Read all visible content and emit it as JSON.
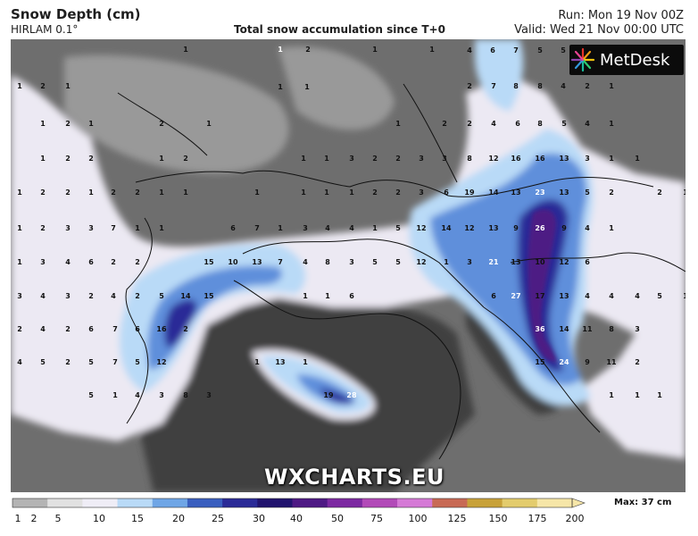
{
  "header": {
    "title": "Snow Depth (cm)",
    "model": "HIRLAM 0.1°",
    "subtitle": "Total snow accumulation since T+0",
    "run": "Run: Mon 19 Nov 00Z",
    "valid": "Valid: Wed 21 Nov 00:00 UTC"
  },
  "logo": {
    "text": "MetDesk",
    "icon": "starburst-logo-icon"
  },
  "watermark": "WXCHARTS.EU",
  "scale": {
    "ticks": [
      "1",
      "2",
      "5",
      "10",
      "15",
      "20",
      "25",
      "30",
      "40",
      "50",
      "75",
      "100",
      "125",
      "150",
      "175",
      "200"
    ],
    "colors": [
      "#b4b4b4",
      "#e1e1e1",
      "#efedf6",
      "#b9daf7",
      "#6fa6e6",
      "#3a5fbf",
      "#2b2b97",
      "#22146e",
      "#4e1a84",
      "#7d2aa2",
      "#b24ab8",
      "#d57ad6",
      "#c86a55",
      "#c8a23a",
      "#e3cc6d",
      "#f6e6a8"
    ],
    "max_label": "Max: 37 cm"
  },
  "map": {
    "land_color": "#6e6e6e",
    "sea_color": "#404040",
    "labels": [
      {
        "v": "1",
        "c": 1
      },
      {
        "v": "1",
        "c": 2
      },
      {
        "v": "2",
        "c": 1
      },
      {
        "v": "1",
        "c": 1
      },
      {
        "v": "1",
        "c": 1
      },
      {
        "v": "4",
        "c": 1
      },
      {
        "v": "6",
        "c": 1
      },
      {
        "v": "7",
        "c": 1
      },
      {
        "v": "5",
        "c": 1
      },
      {
        "v": "5",
        "c": 1
      },
      {
        "v": "3",
        "c": 1
      },
      {
        "v": "1",
        "c": 1
      },
      {
        "v": "2",
        "c": 1
      },
      {
        "v": "1",
        "c": 1
      },
      {
        "v": "1",
        "c": 1
      },
      {
        "v": "1",
        "c": 1
      },
      {
        "v": "2",
        "c": 1
      },
      {
        "v": "7",
        "c": 1
      },
      {
        "v": "8",
        "c": 1
      },
      {
        "v": "8",
        "c": 1
      },
      {
        "v": "4",
        "c": 1
      },
      {
        "v": "2",
        "c": 1
      },
      {
        "v": "1",
        "c": 1
      },
      {
        "v": "1",
        "c": 1
      },
      {
        "v": "2",
        "c": 1
      },
      {
        "v": "1",
        "c": 1
      },
      {
        "v": "2",
        "c": 1
      },
      {
        "v": "1",
        "c": 1
      },
      {
        "v": "1",
        "c": 1
      },
      {
        "v": "2",
        "c": 1
      },
      {
        "v": "2",
        "c": 1
      },
      {
        "v": "4",
        "c": 1
      },
      {
        "v": "6",
        "c": 1
      },
      {
        "v": "8",
        "c": 1
      },
      {
        "v": "5",
        "c": 1
      },
      {
        "v": "4",
        "c": 1
      },
      {
        "v": "1",
        "c": 1
      },
      {
        "v": "1",
        "c": 1
      },
      {
        "v": "2",
        "c": 1
      },
      {
        "v": "2",
        "c": 1
      },
      {
        "v": "1",
        "c": 1
      },
      {
        "v": "2",
        "c": 1
      },
      {
        "v": "1",
        "c": 1
      },
      {
        "v": "1",
        "c": 1
      },
      {
        "v": "3",
        "c": 1
      },
      {
        "v": "2",
        "c": 1
      },
      {
        "v": "2",
        "c": 1
      },
      {
        "v": "3",
        "c": 1
      },
      {
        "v": "3",
        "c": 1
      },
      {
        "v": "8",
        "c": 1
      },
      {
        "v": "12",
        "c": 1
      },
      {
        "v": "16",
        "c": 1
      },
      {
        "v": "16",
        "c": 1
      },
      {
        "v": "13",
        "c": 1
      },
      {
        "v": "3",
        "c": 1
      },
      {
        "v": "1",
        "c": 1
      },
      {
        "v": "1",
        "c": 1
      },
      {
        "v": "1",
        "c": 1
      },
      {
        "v": "2",
        "c": 1
      },
      {
        "v": "2",
        "c": 1
      },
      {
        "v": "1",
        "c": 1
      },
      {
        "v": "2",
        "c": 1
      },
      {
        "v": "2",
        "c": 1
      },
      {
        "v": "1",
        "c": 1
      },
      {
        "v": "1",
        "c": 1
      },
      {
        "v": "1",
        "c": 1
      },
      {
        "v": "1",
        "c": 1
      },
      {
        "v": "1",
        "c": 1
      },
      {
        "v": "1",
        "c": 1
      },
      {
        "v": "2",
        "c": 1
      },
      {
        "v": "2",
        "c": 1
      },
      {
        "v": "3",
        "c": 1
      },
      {
        "v": "6",
        "c": 1
      },
      {
        "v": "19",
        "c": 1
      },
      {
        "v": "14",
        "c": 1
      },
      {
        "v": "13",
        "c": 1
      },
      {
        "v": "23",
        "c": 2
      },
      {
        "v": "13",
        "c": 1
      },
      {
        "v": "5",
        "c": 1
      },
      {
        "v": "2",
        "c": 1
      },
      {
        "v": "2",
        "c": 1
      },
      {
        "v": "1",
        "c": 1
      },
      {
        "v": "1",
        "c": 1
      },
      {
        "v": "2",
        "c": 1
      },
      {
        "v": "3",
        "c": 1
      },
      {
        "v": "3",
        "c": 1
      },
      {
        "v": "7",
        "c": 1
      },
      {
        "v": "1",
        "c": 1
      },
      {
        "v": "1",
        "c": 1
      },
      {
        "v": "6",
        "c": 1
      },
      {
        "v": "7",
        "c": 1
      },
      {
        "v": "1",
        "c": 1
      },
      {
        "v": "3",
        "c": 1
      },
      {
        "v": "4",
        "c": 1
      },
      {
        "v": "4",
        "c": 1
      },
      {
        "v": "1",
        "c": 1
      },
      {
        "v": "5",
        "c": 1
      },
      {
        "v": "12",
        "c": 1
      },
      {
        "v": "14",
        "c": 1
      },
      {
        "v": "12",
        "c": 1
      },
      {
        "v": "13",
        "c": 1
      },
      {
        "v": "9",
        "c": 1
      },
      {
        "v": "26",
        "c": 2
      },
      {
        "v": "9",
        "c": 1
      },
      {
        "v": "4",
        "c": 1
      },
      {
        "v": "1",
        "c": 1
      },
      {
        "v": "1",
        "c": 1
      },
      {
        "v": "3",
        "c": 1
      },
      {
        "v": "4",
        "c": 1
      },
      {
        "v": "6",
        "c": 1
      },
      {
        "v": "2",
        "c": 1
      },
      {
        "v": "2",
        "c": 1
      },
      {
        "v": "15",
        "c": 1
      },
      {
        "v": "10",
        "c": 1
      },
      {
        "v": "13",
        "c": 1
      },
      {
        "v": "7",
        "c": 1
      },
      {
        "v": "4",
        "c": 1
      },
      {
        "v": "8",
        "c": 1
      },
      {
        "v": "3",
        "c": 1
      },
      {
        "v": "5",
        "c": 1
      },
      {
        "v": "5",
        "c": 1
      },
      {
        "v": "12",
        "c": 1
      },
      {
        "v": "1",
        "c": 1
      },
      {
        "v": "3",
        "c": 1
      },
      {
        "v": "21",
        "c": 2
      },
      {
        "v": "13",
        "c": 1
      },
      {
        "v": "10",
        "c": 1
      },
      {
        "v": "12",
        "c": 1
      },
      {
        "v": "6",
        "c": 1
      },
      {
        "v": "3",
        "c": 1
      },
      {
        "v": "4",
        "c": 1
      },
      {
        "v": "3",
        "c": 1
      },
      {
        "v": "2",
        "c": 1
      },
      {
        "v": "4",
        "c": 1
      },
      {
        "v": "2",
        "c": 1
      },
      {
        "v": "5",
        "c": 1
      },
      {
        "v": "14",
        "c": 1
      },
      {
        "v": "15",
        "c": 1
      },
      {
        "v": "1",
        "c": 1
      },
      {
        "v": "1",
        "c": 1
      },
      {
        "v": "6",
        "c": 1
      },
      {
        "v": "6",
        "c": 1
      },
      {
        "v": "27",
        "c": 2
      },
      {
        "v": "17",
        "c": 1
      },
      {
        "v": "13",
        "c": 1
      },
      {
        "v": "4",
        "c": 1
      },
      {
        "v": "4",
        "c": 1
      },
      {
        "v": "4",
        "c": 1
      },
      {
        "v": "5",
        "c": 1
      },
      {
        "v": "1",
        "c": 1
      },
      {
        "v": "2",
        "c": 1
      },
      {
        "v": "4",
        "c": 1
      },
      {
        "v": "2",
        "c": 1
      },
      {
        "v": "6",
        "c": 1
      },
      {
        "v": "7",
        "c": 1
      },
      {
        "v": "6",
        "c": 1
      },
      {
        "v": "16",
        "c": 1
      },
      {
        "v": "2",
        "c": 1
      },
      {
        "v": "36",
        "c": 2
      },
      {
        "v": "14",
        "c": 1
      },
      {
        "v": "11",
        "c": 1
      },
      {
        "v": "8",
        "c": 1
      },
      {
        "v": "3",
        "c": 1
      },
      {
        "v": "4",
        "c": 1
      },
      {
        "v": "5",
        "c": 1
      },
      {
        "v": "2",
        "c": 1
      },
      {
        "v": "5",
        "c": 1
      },
      {
        "v": "7",
        "c": 1
      },
      {
        "v": "5",
        "c": 1
      },
      {
        "v": "12",
        "c": 1
      },
      {
        "v": "1",
        "c": 1
      },
      {
        "v": "13",
        "c": 1
      },
      {
        "v": "1",
        "c": 1
      },
      {
        "v": "15",
        "c": 1
      },
      {
        "v": "24",
        "c": 2
      },
      {
        "v": "9",
        "c": 1
      },
      {
        "v": "11",
        "c": 1
      },
      {
        "v": "2",
        "c": 1
      },
      {
        "v": "5",
        "c": 1
      },
      {
        "v": "1",
        "c": 1
      },
      {
        "v": "4",
        "c": 1
      },
      {
        "v": "3",
        "c": 1
      },
      {
        "v": "8",
        "c": 1
      },
      {
        "v": "3",
        "c": 1
      },
      {
        "v": "19",
        "c": 1
      },
      {
        "v": "28",
        "c": 2
      },
      {
        "v": "1",
        "c": 1
      },
      {
        "v": "1",
        "c": 1
      },
      {
        "v": "1",
        "c": 1
      }
    ]
  }
}
